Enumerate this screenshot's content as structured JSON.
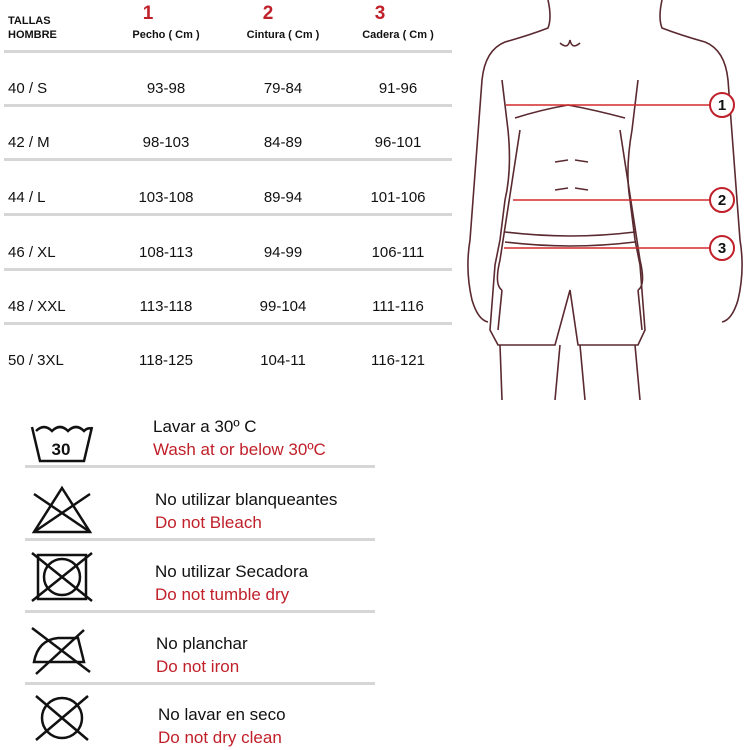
{
  "table": {
    "title_line1": "TALLAS",
    "title_line2": "HOMBRE",
    "columns": [
      {
        "number": "1",
        "label": "Pecho ( Cm )"
      },
      {
        "number": "2",
        "label": "Cintura ( Cm )"
      },
      {
        "number": "3",
        "label": "Cadera ( Cm )"
      }
    ],
    "rows": [
      {
        "size": "40 / S",
        "values": [
          "93-98",
          "79-84",
          "91-96"
        ]
      },
      {
        "size": "42 / M",
        "values": [
          "98-103",
          "84-89",
          "96-101"
        ]
      },
      {
        "size": "44 / L",
        "values": [
          "103-108",
          "89-94",
          "101-106"
        ]
      },
      {
        "size": "46 / XL",
        "values": [
          "108-113",
          "94-99",
          "106-111"
        ]
      },
      {
        "size": "48 / XXL",
        "values": [
          "113-118",
          "99-104",
          "111-116"
        ]
      },
      {
        "size": "50 / 3XL",
        "values": [
          "118-125",
          "104-11",
          "116-121"
        ]
      }
    ]
  },
  "figure": {
    "markers": [
      "1",
      "2",
      "3"
    ]
  },
  "care": [
    {
      "icon": "wash-30-icon",
      "icon_text": "30",
      "es": "Lavar a 30º C",
      "en": "Wash at or below 30ºC"
    },
    {
      "icon": "no-bleach-icon",
      "es": "No utilizar blanqueantes",
      "en": "Do not Bleach"
    },
    {
      "icon": "no-tumble-dry-icon",
      "es": "No utilizar Secadora",
      "en": "Do not tumble dry"
    },
    {
      "icon": "no-iron-icon",
      "es": "No planchar",
      "en": "Do not iron"
    },
    {
      "icon": "no-dry-clean-icon",
      "es": "No lavar en seco",
      "en": "Do not dry clean"
    }
  ],
  "colors": {
    "accent": "#c0202a",
    "line": "#5a2a30",
    "divider": "#d6d6d6"
  }
}
